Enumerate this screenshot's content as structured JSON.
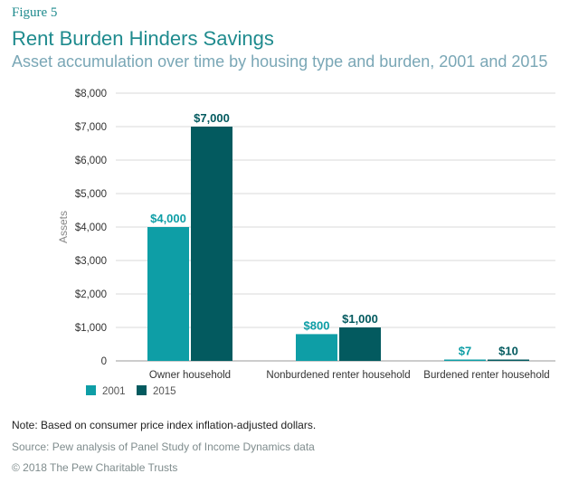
{
  "figure_label": "Figure 5",
  "chart_data": {
    "type": "bar",
    "title": "Rent Burden Hinders Savings",
    "subtitle": "Asset accumulation over time by housing type and burden, 2001 and 2015",
    "ylabel": "Assets",
    "xlabel": "",
    "categories": [
      "Owner household",
      "Nonburdened renter household",
      "Burdened renter household"
    ],
    "series": [
      {
        "name": "2001",
        "values": [
          4000,
          800,
          7
        ],
        "labels": [
          "$4,000",
          "$800",
          "$7"
        ],
        "color": "#0e9ea6"
      },
      {
        "name": "2015",
        "values": [
          7000,
          1000,
          10
        ],
        "labels": [
          "$7,000",
          "$1,000",
          "$10"
        ],
        "color": "#035a5f"
      }
    ],
    "ylim": [
      0,
      8000
    ],
    "yticks": [
      0,
      1000,
      2000,
      3000,
      4000,
      5000,
      6000,
      7000,
      8000
    ],
    "ytick_labels": [
      "0",
      "$1,000",
      "$2,000",
      "$3,000",
      "$4,000",
      "$5,000",
      "$6,000",
      "$7,000",
      "$8,000"
    ],
    "grid": true,
    "legend_position": "bottom-left"
  },
  "note": "Note: Based on consumer price index inflation-adjusted dollars.",
  "source": "Source: Pew analysis of Panel Study of Income Dynamics data",
  "copyright": "© 2018 The Pew Charitable Trusts"
}
